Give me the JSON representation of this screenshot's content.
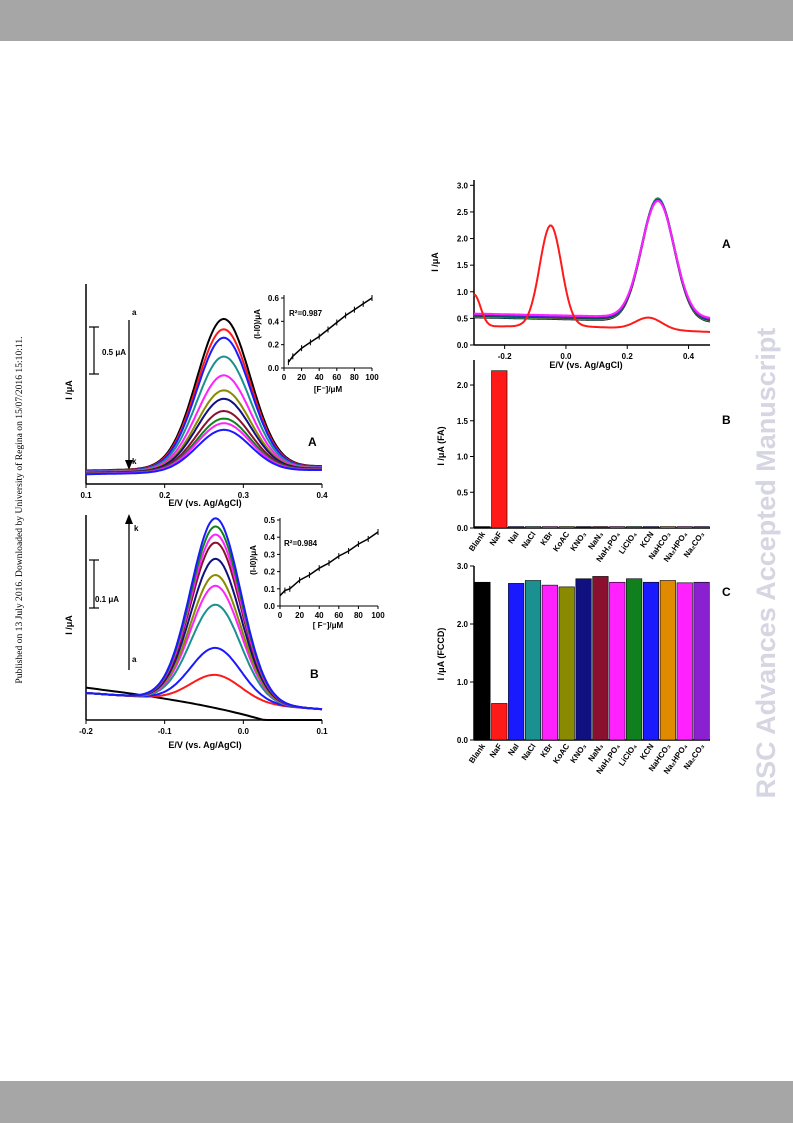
{
  "header": {
    "bar_color": "#a6a6a6"
  },
  "footer": {
    "bar_color": "#a6a6a6"
  },
  "side_text_left": "Published on 13 July 2016. Downloaded by University of Regina on 15/07/2016 15:10:11.",
  "side_text_right": "RSC Advances Accepted Manuscript",
  "colors": {
    "black": "#000000",
    "red": "#ff1a1a",
    "blue": "#1a1aff",
    "teal": "#1a9090",
    "magenta": "#ff22ff",
    "olive": "#8a8a00",
    "navy": "#101080",
    "maroon": "#8b1030",
    "green": "#10801e",
    "orange": "#e08a00",
    "purple": "#8a20d0"
  },
  "chart_data": [
    {
      "panel": "A",
      "type": "line",
      "xlabel": "E/V (vs. Ag/AgCl)",
      "ylabel": "I /μA",
      "x_ticks": [
        "0.1",
        "0.2",
        "0.3",
        "0.4"
      ],
      "xlim": [
        0.1,
        0.4
      ],
      "peak_x": 0.275,
      "scale_bar": "0.5 μA",
      "curve_first_label": "a",
      "curve_last_label": "k",
      "series": [
        {
          "color": "black",
          "peak": 1.73
        },
        {
          "color": "red",
          "peak": 1.62
        },
        {
          "color": "blue",
          "peak": 1.53
        },
        {
          "color": "teal",
          "peak": 1.33
        },
        {
          "color": "magenta",
          "peak": 1.13
        },
        {
          "color": "olive",
          "peak": 0.97
        },
        {
          "color": "navy",
          "peak": 0.88
        },
        {
          "color": "maroon",
          "peak": 0.75
        },
        {
          "color": "green",
          "peak": 0.67
        },
        {
          "color": "magenta",
          "peak": 0.62
        },
        {
          "color": "blue",
          "peak": 0.55
        }
      ],
      "inset": {
        "xlabel": "[F⁻]/μM",
        "ylabel": "(I-I0)/μA",
        "r2": "R²=0.987",
        "x_ticks": [
          "0",
          "20",
          "40",
          "60",
          "80",
          "100"
        ],
        "y_ticks": [
          "0.0",
          "0.2",
          "0.4",
          "0.6"
        ],
        "xlim": [
          0,
          100
        ],
        "ylim": [
          0,
          0.6
        ],
        "points": [
          [
            5,
            0.05
          ],
          [
            10,
            0.1
          ],
          [
            20,
            0.17
          ],
          [
            30,
            0.22
          ],
          [
            40,
            0.27
          ],
          [
            50,
            0.33
          ],
          [
            60,
            0.39
          ],
          [
            70,
            0.45
          ],
          [
            80,
            0.5
          ],
          [
            90,
            0.55
          ],
          [
            100,
            0.6
          ]
        ]
      }
    },
    {
      "panel": "B",
      "type": "line",
      "xlabel": "E/V (vs. Ag/AgCl)",
      "ylabel": "I /μA",
      "x_ticks": [
        "-0.2",
        "-0.1",
        "0.0",
        "0.1"
      ],
      "xlim": [
        -0.2,
        0.1
      ],
      "peak_x": -0.035,
      "scale_bar": "0.1 μA",
      "curve_first_label": "a",
      "curve_last_label": "k",
      "blank_color": "black",
      "series": [
        {
          "color": "red",
          "peak": 0.1
        },
        {
          "color": "blue",
          "peak": 0.2
        },
        {
          "color": "teal",
          "peak": 0.36
        },
        {
          "color": "magenta",
          "peak": 0.43
        },
        {
          "color": "olive",
          "peak": 0.47
        },
        {
          "color": "navy",
          "peak": 0.53
        },
        {
          "color": "maroon",
          "peak": 0.59
        },
        {
          "color": "magenta",
          "peak": 0.62
        },
        {
          "color": "green",
          "peak": 0.65
        },
        {
          "color": "blue",
          "peak": 0.68
        }
      ],
      "inset": {
        "xlabel": "[ F⁻]/μM",
        "ylabel": "(I-I0)/μA",
        "r2": "R²=0.984",
        "x_ticks": [
          "0",
          "20",
          "40",
          "60",
          "80",
          "100"
        ],
        "y_ticks": [
          "0.0",
          "0.1",
          "0.2",
          "0.3",
          "0.4",
          "0.5"
        ],
        "xlim": [
          0,
          100
        ],
        "ylim": [
          0,
          0.5
        ],
        "points": [
          [
            0,
            0.06
          ],
          [
            5,
            0.09
          ],
          [
            10,
            0.1
          ],
          [
            20,
            0.15
          ],
          [
            30,
            0.18
          ],
          [
            40,
            0.22
          ],
          [
            50,
            0.25
          ],
          [
            60,
            0.29
          ],
          [
            70,
            0.32
          ],
          [
            80,
            0.36
          ],
          [
            90,
            0.39
          ],
          [
            100,
            0.43
          ]
        ]
      }
    },
    {
      "panel": "A",
      "type": "line",
      "xlabel": "E/V (vs. Ag/AgCl)",
      "ylabel": "I /μA",
      "x_ticks": [
        "-0.2",
        "0.0",
        "0.2",
        "0.4"
      ],
      "y_ticks": [
        "0.0",
        "0.5",
        "1.0",
        "1.5",
        "2.0",
        "2.5",
        "3.0"
      ],
      "xlim": [
        -0.3,
        0.47
      ],
      "ylim": [
        0,
        3.1
      ],
      "series": [
        {
          "color": "black",
          "peak": 2.72
        },
        {
          "color": "teal",
          "peak": 2.75
        },
        {
          "color": "olive",
          "peak": 2.72
        },
        {
          "color": "navy",
          "peak": 2.7
        },
        {
          "color": "green",
          "peak": 2.7
        },
        {
          "color": "blue",
          "peak": 2.68
        },
        {
          "color": "purple",
          "peak": 2.66
        },
        {
          "color": "magenta",
          "peak": 2.64
        }
      ],
      "fluoride_curve": {
        "color": "red",
        "peak1_x": -0.05,
        "peak1": 2.2,
        "peak2_x": 0.27,
        "peak2": 0.55
      }
    },
    {
      "panel": "B",
      "type": "bar",
      "ylabel": "I /μA  (FA)",
      "y_ticks": [
        "0.0",
        "0.5",
        "1.0",
        "1.5",
        "2.0"
      ],
      "ylim": [
        0,
        2.35
      ],
      "categories": [
        "Blank",
        "NaF",
        "NaI",
        "NaCl",
        "KBr",
        "KoAC",
        "KNO₃",
        "NaN₃",
        "NaH₂PO₄",
        "LiClO₄",
        "KCN",
        "NaHCO₃",
        "Na₂HPO₄",
        "Na₂CO₃"
      ],
      "values": [
        0.02,
        2.2,
        0.02,
        0.02,
        0.02,
        0.02,
        0.02,
        0.02,
        0.02,
        0.02,
        0.02,
        0.02,
        0.02,
        0.02
      ],
      "bar_colors": [
        "black",
        "red",
        "blue",
        "teal",
        "magenta",
        "olive",
        "navy",
        "maroon",
        "magenta",
        "green",
        "blue",
        "orange",
        "magenta",
        "purple"
      ]
    },
    {
      "panel": "C",
      "type": "bar",
      "ylabel": "I /μA (FCCD)",
      "y_ticks": [
        "0.0",
        "1.0",
        "2.0",
        "3.0"
      ],
      "ylim": [
        0,
        3.0
      ],
      "categories": [
        "Blank",
        "NaF",
        "NaI",
        "NaCl",
        "KBr",
        "KoAC",
        "KNO₃",
        "NaN₃",
        "NaH₂PO₄",
        "LiClO₄",
        "KCN",
        "NaHCO₃",
        "Na₂HPO₄",
        "Na₂CO₃"
      ],
      "values": [
        2.72,
        0.63,
        2.7,
        2.75,
        2.67,
        2.64,
        2.78,
        2.82,
        2.72,
        2.78,
        2.72,
        2.75,
        2.71,
        2.72
      ],
      "bar_colors": [
        "black",
        "red",
        "blue",
        "teal",
        "magenta",
        "olive",
        "navy",
        "maroon",
        "magenta",
        "green",
        "blue",
        "orange",
        "magenta",
        "purple"
      ]
    }
  ]
}
